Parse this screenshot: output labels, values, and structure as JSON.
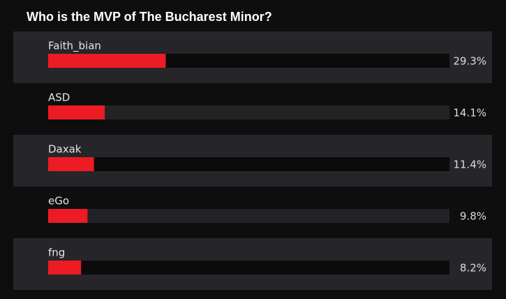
{
  "chart_data": {
    "type": "bar",
    "orientation": "horizontal",
    "title": "Who is the MVP of The Bucharest Minor?",
    "categories": [
      "Faith_bian",
      "ASD",
      "Daxak",
      "eGo",
      "fng"
    ],
    "values": [
      29.3,
      14.1,
      11.4,
      9.8,
      8.2
    ],
    "value_labels": [
      "29.3%",
      "14.1%",
      "11.4%",
      "9.8%",
      "8.2%"
    ],
    "color": "#ed1c24",
    "xlim": [
      0,
      100
    ]
  }
}
